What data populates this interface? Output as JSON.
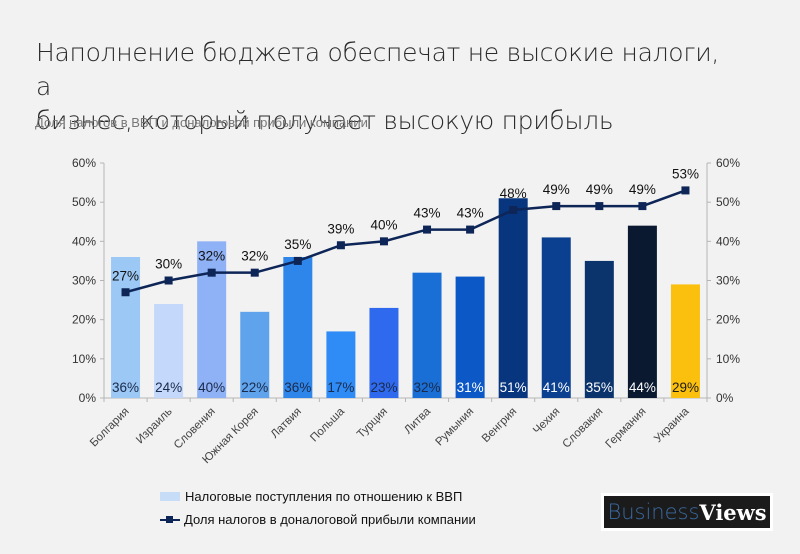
{
  "header": {
    "title": "Наполнение бюджета обеспечат не высокие налоги, а\nбизнес, который получает высокую прибыль",
    "subtitle": "Доля налогов в ВВП и доналоговой прибыли компании"
  },
  "logo": {
    "part1": "Business",
    "part2": "Views"
  },
  "chart_data": {
    "type": "bar",
    "title": "Наполнение бюджета обеспечат не высокие налоги, а бизнес, который получает высокую прибыль",
    "subtitle": "Доля налогов в ВВП и доналоговой прибыли компании",
    "xlabel": "",
    "ylabel": "",
    "ylim": [
      0,
      60
    ],
    "y2lim": [
      0,
      60
    ],
    "yticks": [
      "0%",
      "10%",
      "20%",
      "30%",
      "40%",
      "50%",
      "60%"
    ],
    "grid": false,
    "legend_position": "bottom-left",
    "categories": [
      "Болгария",
      "Израиль",
      "Словения",
      "Южная Корея",
      "Латвия",
      "Польша",
      "Турция",
      "Литва",
      "Румыния",
      "Венгрия",
      "Чехия",
      "Словакия",
      "Германия",
      "Украина"
    ],
    "series": [
      {
        "name": "Налоговые поступления по отношению к ВВП",
        "type": "bar",
        "axis": "left",
        "values": [
          36,
          24,
          40,
          22,
          36,
          17,
          23,
          32,
          31,
          51,
          41,
          35,
          44,
          29
        ],
        "labels": [
          "36%",
          "24%",
          "40%",
          "22%",
          "36%",
          "17%",
          "23%",
          "32%",
          "31%",
          "51%",
          "41%",
          "35%",
          "44%",
          "29%"
        ],
        "colors": [
          "#9cc8f5",
          "#c3d8fb",
          "#8fb1f5",
          "#5fa3ec",
          "#2f86ea",
          "#2f8cf6",
          "#2f6aee",
          "#1a6fd6",
          "#0b58c6",
          "#07367f",
          "#0b3f8f",
          "#0b346d",
          "#0a1830",
          "#fbbf0d"
        ],
        "label_colors": [
          "#1a2a4a",
          "#1a2a4a",
          "#1a2a4a",
          "#1a2a4a",
          "#1a2a4a",
          "#1a2a4a",
          "#1a2a4a",
          "#1a2a4a",
          "#ffffff",
          "#ffffff",
          "#ffffff",
          "#ffffff",
          "#ffffff",
          "#1a1a1a"
        ],
        "legend_color": "#c6dcf7"
      },
      {
        "name": "Доля налогов в доналоговой прибыли компании",
        "type": "line",
        "axis": "right",
        "values": [
          27,
          30,
          32,
          32,
          35,
          39,
          40,
          43,
          43,
          48,
          49,
          49,
          49,
          53
        ],
        "labels": [
          "27%",
          "30%",
          "32%",
          "32%",
          "35%",
          "39%",
          "40%",
          "43%",
          "43%",
          "48%",
          "49%",
          "49%",
          "49%",
          "53%"
        ],
        "color": "#0d2557"
      }
    ]
  }
}
